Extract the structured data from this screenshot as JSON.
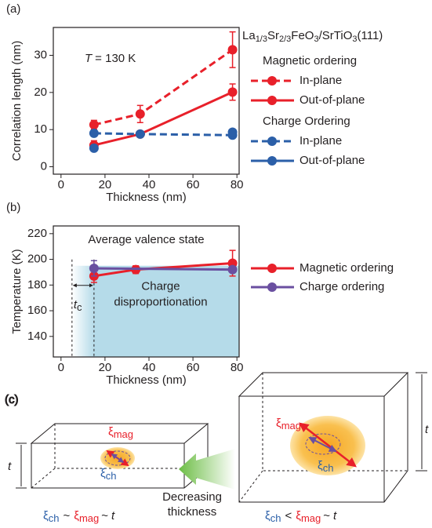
{
  "chart_data": [
    {
      "type": "line",
      "panel_label": "(a)",
      "xlabel": "Thickness (nm)",
      "ylabel": "Correlation length (nm)",
      "xlim": [
        -3.5,
        81
      ],
      "xticks": [
        0,
        20,
        40,
        60,
        80
      ],
      "ylim": [
        -2,
        37.5
      ],
      "yticks": [
        0,
        10,
        20,
        30
      ],
      "sample": [
        "La",
        "1/3",
        "Sr",
        "2/3",
        "FeO",
        "3",
        "/SrTiO",
        "3",
        "(111)"
      ],
      "annotation": {
        "symbol": "T",
        "text": "= 130 K"
      },
      "series": [
        {
          "name": "In-plane",
          "group": "Magnetic ordering",
          "color": "#e8202a",
          "dashed": true,
          "x": [
            15,
            36,
            78
          ],
          "values": [
            11.3,
            14.2,
            31.5
          ],
          "errors": [
            1.2,
            2.3,
            4.8
          ]
        },
        {
          "name": "Out-of-plane",
          "group": "Magnetic ordering",
          "color": "#e8202a",
          "dashed": false,
          "x": [
            15,
            36,
            78
          ],
          "values": [
            5.8,
            8.8,
            20.1
          ],
          "errors": [
            1.2,
            0.5,
            2.2
          ]
        },
        {
          "name": "In-plane",
          "group": "Charge Ordering",
          "color": "#2b5fa8",
          "dashed": true,
          "x": [
            15,
            36,
            78
          ],
          "values": [
            9,
            8.8,
            8.5
          ],
          "errors": [
            0.8,
            0.4,
            0.6
          ]
        },
        {
          "name": "Out-of-plane",
          "group": "Charge Ordering",
          "color": "#2b5fa8",
          "dashed": false,
          "x": [
            15,
            36,
            78
          ],
          "values": [
            5,
            null,
            9.3
          ],
          "errors": [
            0.6,
            null,
            0.5
          ]
        }
      ]
    },
    {
      "type": "line",
      "panel_label": "(b)",
      "xlabel": "Thickness (nm)",
      "ylabel": "Temperature (K)",
      "xlim": [
        -3.5,
        81
      ],
      "xticks": [
        0,
        20,
        40,
        60,
        80
      ],
      "ylim": [
        124,
        226
      ],
      "yticks": [
        140,
        160,
        180,
        200,
        220
      ],
      "shade": {
        "x": [
          5,
          15
        ],
        "y": 195
      },
      "annotations": {
        "top": "Average valence state",
        "region": [
          "Charge",
          "disproportionation"
        ],
        "tc": [
          "t",
          "c"
        ]
      },
      "series": [
        {
          "name": "Magnetic ordering",
          "color": "#e8202a",
          "dashed": false,
          "x": [
            15,
            34,
            78
          ],
          "values": [
            187,
            192,
            197
          ],
          "errors": [
            5,
            3,
            10
          ]
        },
        {
          "name": "Charge ordering",
          "color": "#6a4fa0",
          "dashed": false,
          "x": [
            15,
            78
          ],
          "values": [
            193,
            192
          ],
          "errors": [
            6,
            2
          ]
        }
      ]
    }
  ],
  "diagram": {
    "panel_label": "(c)",
    "xi": "ξ",
    "mag": "mag",
    "ch": "ch",
    "t": "t",
    "sim": "~",
    "lt": "<",
    "arrow_label": [
      "Decreasing",
      "thickness"
    ]
  }
}
